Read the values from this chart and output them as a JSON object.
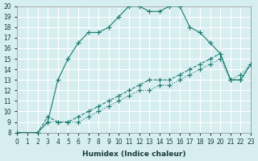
{
  "xlabel": "Humidex (Indice chaleur)",
  "ylabel": "",
  "bg_color": "#d6eef0",
  "grid_color": "#ffffff",
  "line_color": "#1a7a6e",
  "xlim": [
    0,
    23
  ],
  "ylim": [
    8,
    20
  ],
  "xticks": [
    0,
    1,
    2,
    3,
    4,
    5,
    6,
    7,
    8,
    9,
    10,
    11,
    12,
    13,
    14,
    15,
    16,
    17,
    18,
    19,
    20,
    21,
    22,
    23
  ],
  "yticks": [
    8,
    9,
    10,
    11,
    12,
    13,
    14,
    15,
    16,
    17,
    18,
    19,
    20
  ],
  "line1_x": [
    0,
    2,
    3,
    4,
    5,
    6,
    7,
    8,
    9,
    10,
    11,
    12,
    13,
    14,
    15,
    16,
    17,
    18,
    19,
    20,
    21,
    22,
    23
  ],
  "line1_y": [
    8,
    8,
    9,
    13,
    15,
    16.5,
    17.5,
    17.5,
    18,
    19,
    20,
    20,
    19.5,
    19.5,
    20,
    20,
    18,
    17.5,
    16.5,
    15.5,
    13,
    13,
    14.5
  ],
  "line2_x": [
    0,
    2,
    3,
    4,
    5,
    6,
    7,
    8,
    9,
    10,
    11,
    12,
    13,
    14,
    15,
    16,
    17,
    18,
    19,
    20,
    21,
    22,
    23
  ],
  "line2_y": [
    8,
    8,
    9.5,
    9,
    9,
    9.5,
    10,
    10.5,
    11,
    11.5,
    12,
    12.5,
    13,
    13,
    13,
    13.5,
    14,
    14.5,
    15,
    15.5,
    13,
    13,
    14.5
  ],
  "line3_x": [
    0,
    2,
    3,
    4,
    5,
    6,
    7,
    8,
    9,
    10,
    11,
    12,
    13,
    14,
    15,
    16,
    17,
    18,
    19,
    20,
    21,
    22,
    23
  ],
  "line3_y": [
    8,
    8,
    9,
    9,
    9,
    9,
    9.5,
    10,
    10.5,
    11,
    11.5,
    12,
    12,
    12.5,
    12.5,
    13,
    13.5,
    14,
    14.5,
    15,
    13,
    13.5,
    14.5
  ]
}
